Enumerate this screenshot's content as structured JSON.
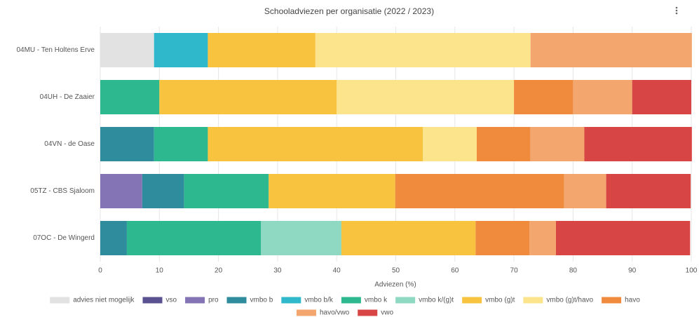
{
  "chart_data": {
    "type": "stacked-bar-horizontal",
    "title": "Schooladviezen per organisatie (2022 / 2023)",
    "x_label": "Adviezen (%)",
    "categories": [
      "04MU - Ten Holtens Erve",
      "04UH - De Zaaier",
      "04VN - de Oase",
      "05TZ - CBS Sjaloom",
      "07OC - De Wingerd"
    ],
    "xlim": [
      0,
      100
    ],
    "xticks": [
      0,
      10,
      20,
      30,
      40,
      50,
      60,
      70,
      80,
      90,
      100
    ],
    "grid": true,
    "legend": "bottom",
    "series": [
      {
        "name": "advies niet mogelijk",
        "color": "#e2e2e2",
        "values": [
          9.1,
          0,
          0,
          0,
          0
        ]
      },
      {
        "name": "vso",
        "color": "#5a5290",
        "values": [
          0,
          0,
          0,
          0,
          0
        ]
      },
      {
        "name": "pro",
        "color": "#8474b6",
        "values": [
          0,
          0,
          0,
          7.1,
          0
        ]
      },
      {
        "name": "vmbo b",
        "color": "#2f8c9c",
        "values": [
          0,
          0,
          9.1,
          7.1,
          4.5
        ]
      },
      {
        "name": "vmbo b/k",
        "color": "#2fb8cc",
        "values": [
          9.1,
          0,
          0,
          0,
          0
        ]
      },
      {
        "name": "vmbo k",
        "color": "#2eb88f",
        "values": [
          0,
          10,
          9.1,
          14.3,
          22.7
        ]
      },
      {
        "name": "vmbo k/(g)t",
        "color": "#8fd8c1",
        "values": [
          0,
          0,
          0,
          0,
          13.6
        ]
      },
      {
        "name": "vmbo (g)t",
        "color": "#f8c43f",
        "values": [
          18.2,
          30,
          36.4,
          21.4,
          22.7
        ]
      },
      {
        "name": "vmbo (g)t/havo",
        "color": "#fbe48c",
        "values": [
          36.4,
          30,
          9.1,
          0,
          0
        ]
      },
      {
        "name": "havo",
        "color": "#f08b3e",
        "values": [
          0,
          10,
          9.1,
          28.6,
          9.1
        ]
      },
      {
        "name": "havo/vwo",
        "color": "#f3a76f",
        "values": [
          27.3,
          10,
          9.1,
          7.1,
          4.5
        ]
      },
      {
        "name": "vwo",
        "color": "#d84545",
        "values": [
          0,
          10,
          18.2,
          14.3,
          22.7
        ]
      }
    ]
  }
}
